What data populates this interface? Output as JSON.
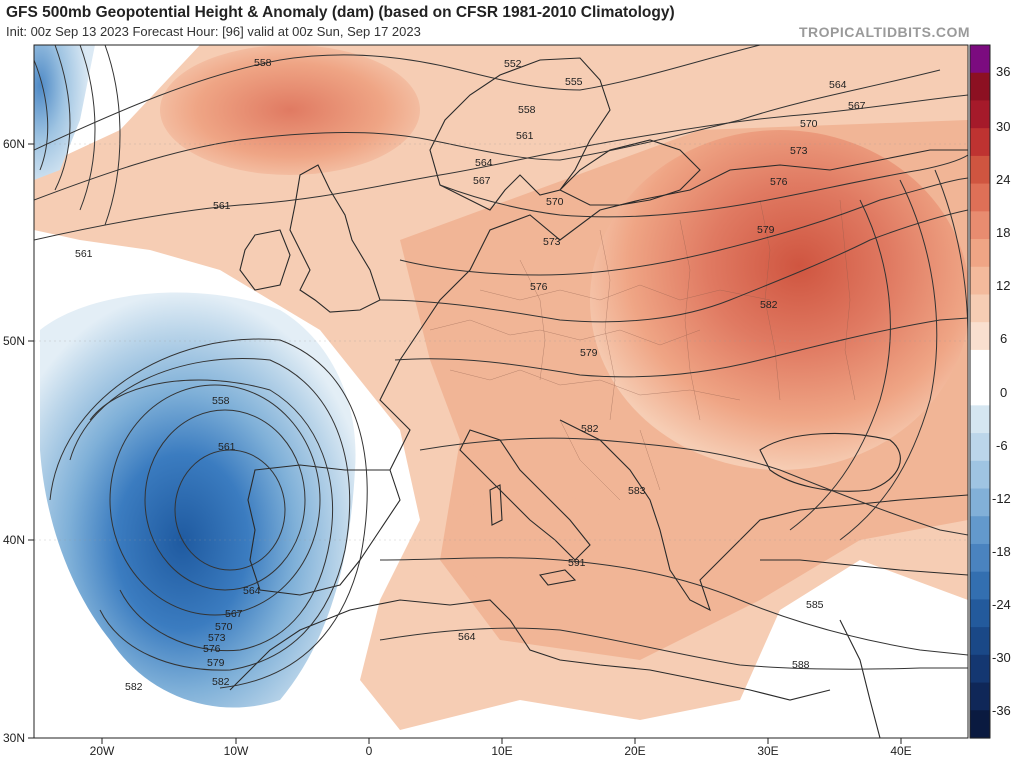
{
  "header": {
    "title": "GFS 500mb Geopotential Height & Anomaly (dam) (based on CFSR 1981-2010 Climatology)",
    "subtitle": "Init: 00z Sep 13 2023   Forecast Hour: [96]   valid at 00z Sun, Sep 17 2023",
    "watermark": "TROPICALTIDBITS.COM"
  },
  "map": {
    "lat_labels": [
      "60N",
      "50N",
      "40N",
      "30N"
    ],
    "lon_labels": [
      "20W",
      "10W",
      "0",
      "10E",
      "20E",
      "30E",
      "40E"
    ],
    "contour_labels": [
      "552",
      "555",
      "558",
      "561",
      "564",
      "567",
      "570",
      "573",
      "576",
      "579",
      "582",
      "585",
      "588",
      "591",
      "564",
      "561",
      "558",
      "561",
      "564",
      "567",
      "570",
      "573",
      "576",
      "579",
      "582",
      "582",
      "583",
      "588",
      "591",
      "564",
      "567",
      "570",
      "573",
      "576",
      "579",
      "582",
      "585",
      "564",
      "561",
      "558",
      "561"
    ]
  },
  "colorbar": {
    "labels": [
      "36",
      "30",
      "24",
      "18",
      "12",
      "6",
      "0",
      "-6",
      "-12",
      "-18",
      "-24",
      "-30",
      "-36"
    ],
    "colors": [
      "#7b0b7f",
      "#8c1022",
      "#a51a2a",
      "#be3331",
      "#cf5540",
      "#de7057",
      "#e88c70",
      "#efa585",
      "#f3ba9c",
      "#f6cdb4",
      "#f9dfcf",
      "#ffffff",
      "#ffffff",
      "#d5e6f1",
      "#bcd6ea",
      "#9fc4e2",
      "#82b0d8",
      "#6399cc",
      "#4a83bf",
      "#336fb0",
      "#235a9c",
      "#1a4887",
      "#143771",
      "#0f2758",
      "#0a1a40"
    ]
  }
}
